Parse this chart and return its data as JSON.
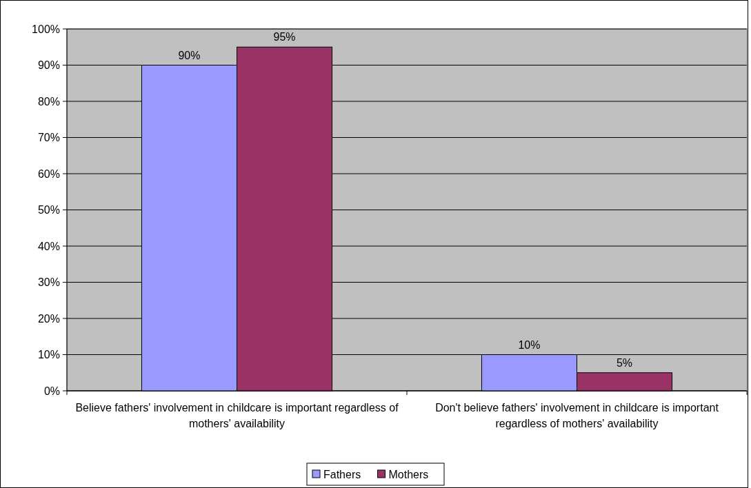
{
  "chart_data": {
    "type": "bar",
    "categories": [
      "Believe fathers' involvement in childcare is important regardless of mothers' availability",
      "Don't believe fathers' involvement in childcare is important regardless of mothers' availability"
    ],
    "series": [
      {
        "name": "Fathers",
        "color": "#9999ff",
        "values": [
          90,
          10
        ]
      },
      {
        "name": "Mothers",
        "color": "#993366",
        "values": [
          95,
          5
        ]
      }
    ],
    "ylim": [
      0,
      100
    ],
    "yticks": [
      {
        "value": 0,
        "label": "0%"
      },
      {
        "value": 10,
        "label": "10%"
      },
      {
        "value": 20,
        "label": "20%"
      },
      {
        "value": 30,
        "label": "30%"
      },
      {
        "value": 40,
        "label": "40%"
      },
      {
        "value": 50,
        "label": "50%"
      },
      {
        "value": 60,
        "label": "60%"
      },
      {
        "value": 70,
        "label": "70%"
      },
      {
        "value": 80,
        "label": "80%"
      },
      {
        "value": 90,
        "label": "90%"
      },
      {
        "value": 100,
        "label": "100%"
      }
    ],
    "value_labels": [
      [
        "90%",
        "10%"
      ],
      [
        "95%",
        "5%"
      ]
    ],
    "grid": "y",
    "legend": "bottom"
  }
}
